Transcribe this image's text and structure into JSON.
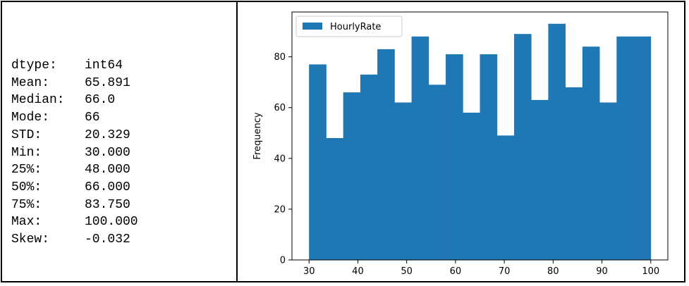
{
  "stats": [
    {
      "label": "dtype:",
      "value": "int64"
    },
    {
      "label": "Mean:",
      "value": "65.891"
    },
    {
      "label": "Median:",
      "value": "66.0"
    },
    {
      "label": "Mode:",
      "value": "66"
    },
    {
      "label": "STD:",
      "value": "20.329"
    },
    {
      "label": "Min:",
      "value": "30.000"
    },
    {
      "label": "25%:",
      "value": "48.000"
    },
    {
      "label": "50%:",
      "value": "66.000"
    },
    {
      "label": "75%:",
      "value": "83.750"
    },
    {
      "label": "Max:",
      "value": "100.000"
    },
    {
      "label": "Skew:",
      "value": "-0.032"
    }
  ],
  "chart_data": {
    "type": "bar",
    "title": "",
    "xlabel": "",
    "ylabel": "Frequency",
    "legend": {
      "label": "HourlyRate",
      "position": "top-left"
    },
    "color": "#1f77b4",
    "xlim": [
      26.5,
      103.5
    ],
    "ylim": [
      0,
      97.65
    ],
    "bin_edges": [
      30,
      33.5,
      37,
      40.5,
      44,
      47.5,
      51,
      54.5,
      58,
      61.5,
      65,
      68.5,
      72,
      75.5,
      79,
      82.5,
      86,
      89.5,
      93,
      96.5,
      100
    ],
    "values": [
      77,
      48,
      66,
      73,
      83,
      62,
      88,
      69,
      81,
      58,
      81,
      49,
      89,
      63,
      93,
      68,
      84,
      62,
      88,
      88
    ],
    "xticks": [
      30,
      40,
      50,
      60,
      70,
      80,
      90,
      100
    ],
    "yticks": [
      0,
      20,
      40,
      60,
      80
    ],
    "grid": false
  }
}
